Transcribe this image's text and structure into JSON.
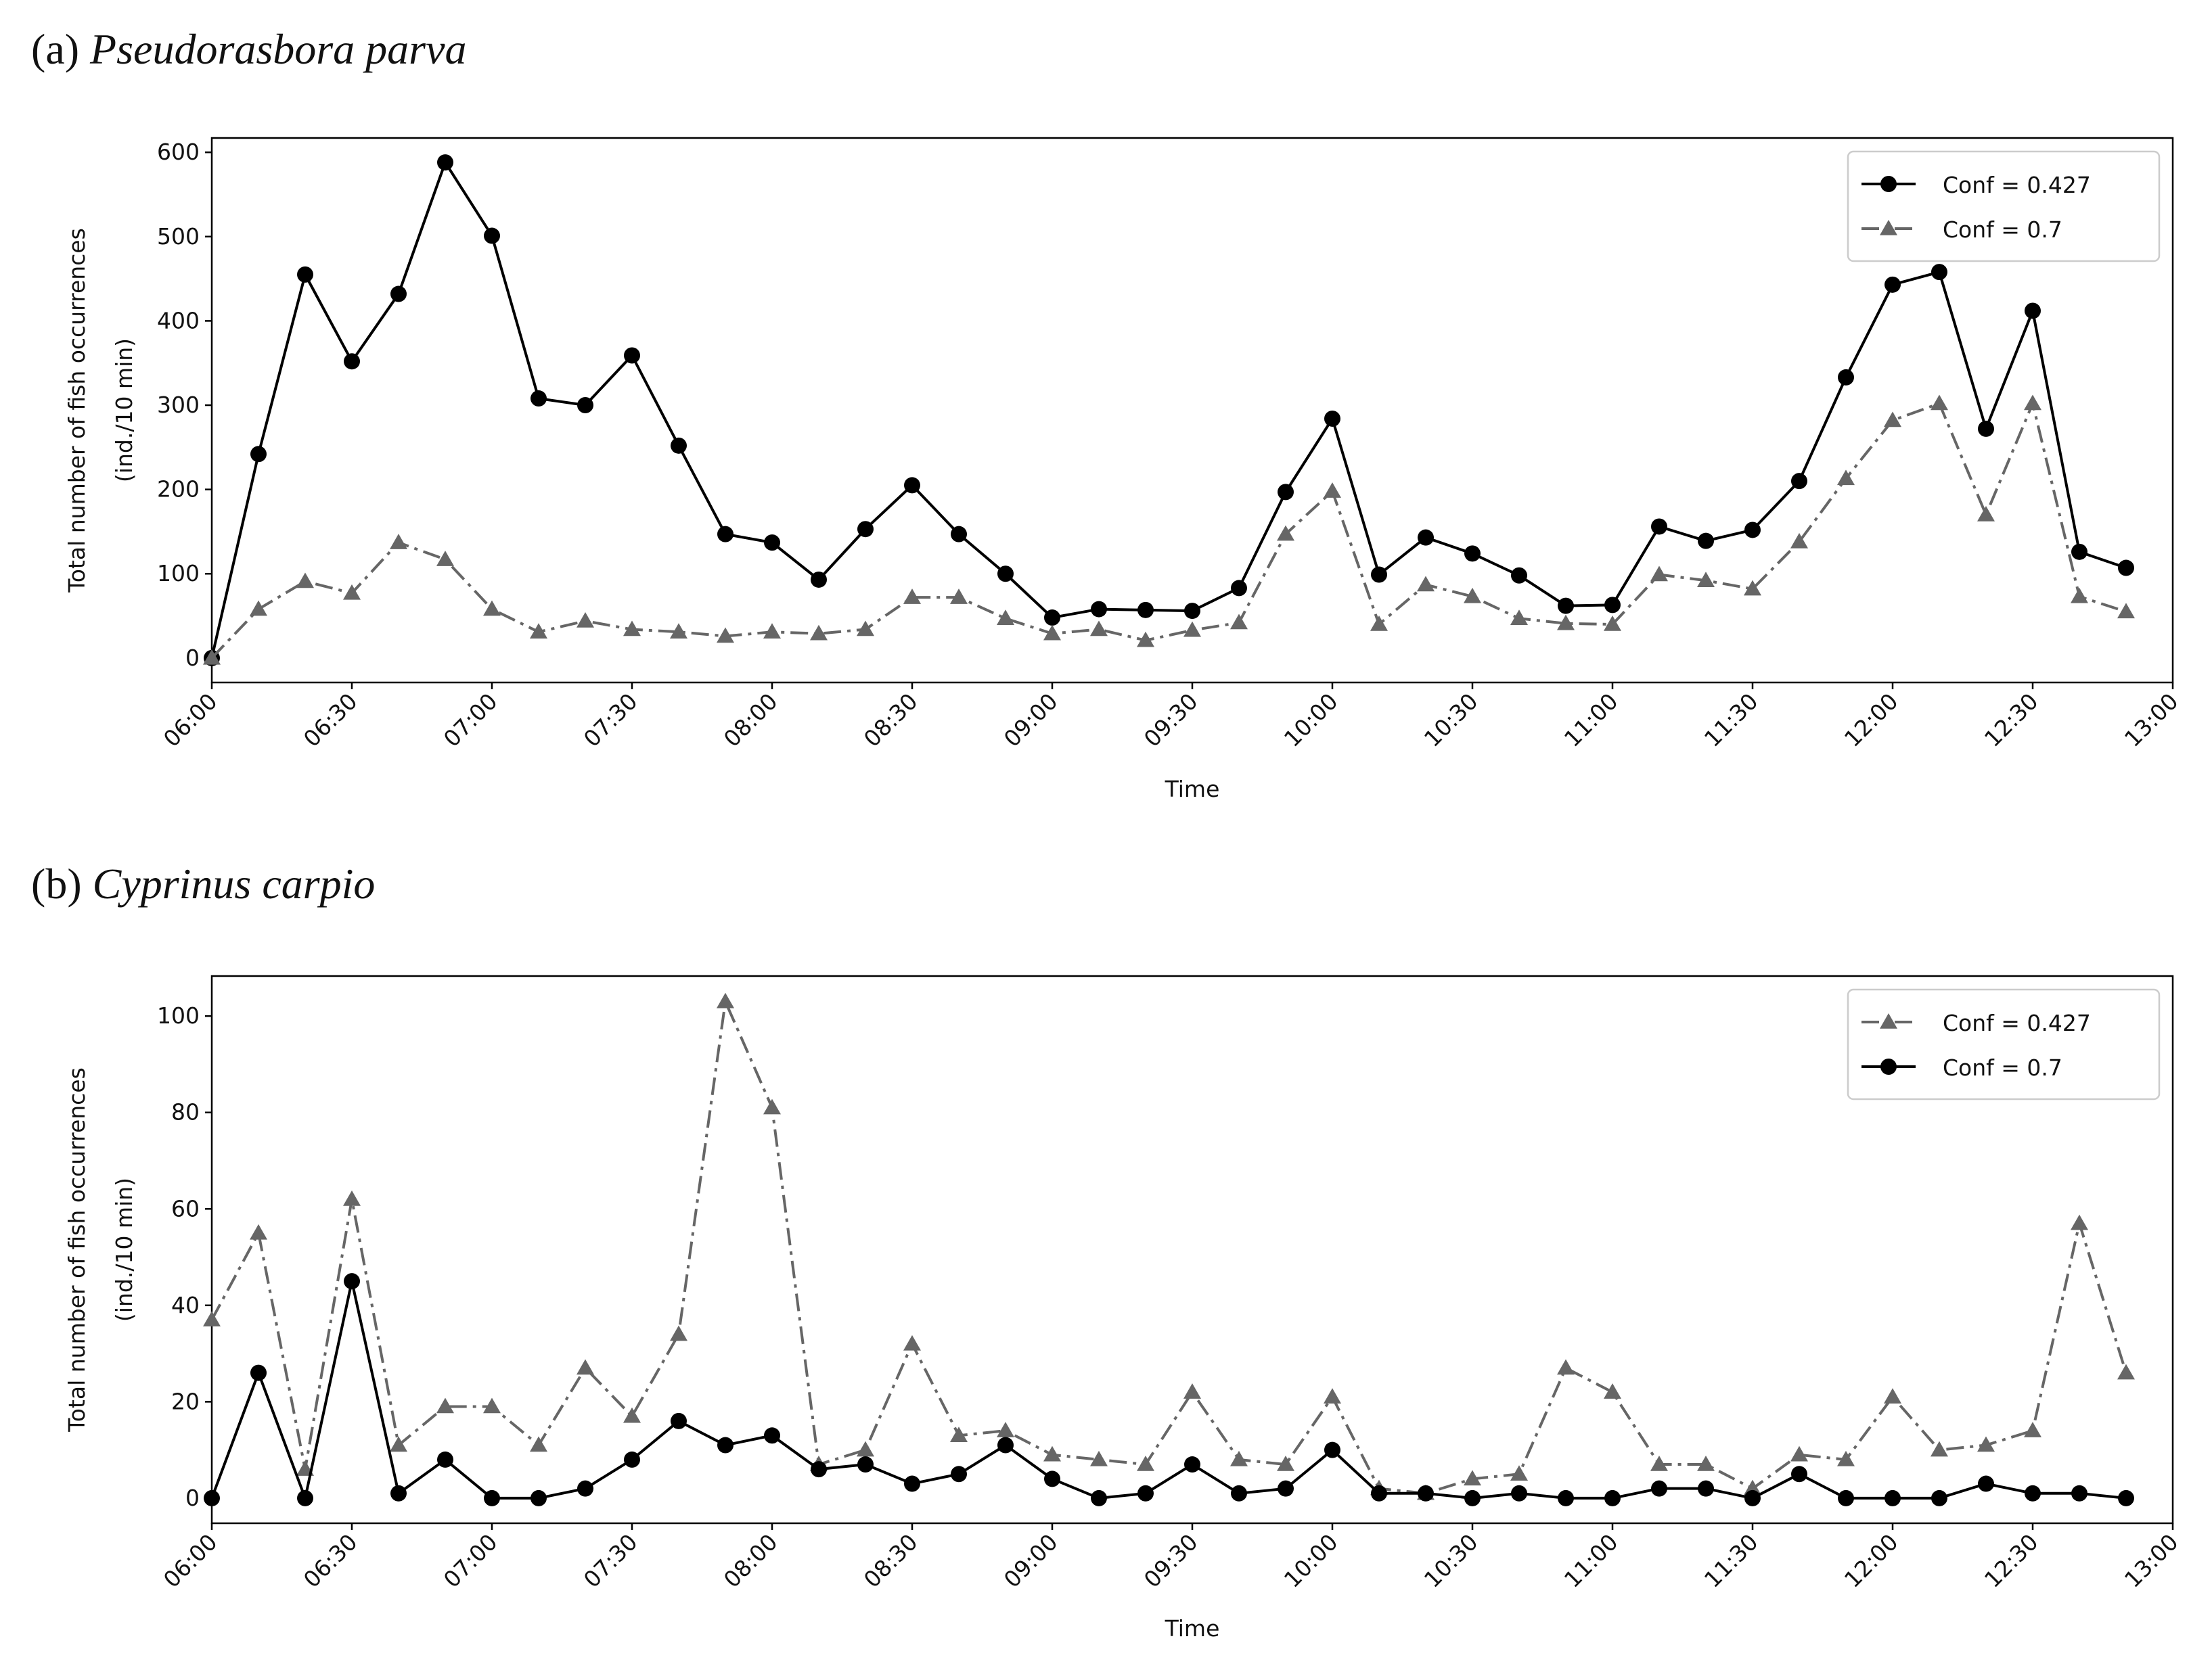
{
  "chart_data": [
    {
      "type": "line",
      "label": "(a)",
      "title": "Pseudorasbora parva",
      "x_label": "Time",
      "y_label": [
        "Total number of fish occurrences",
        "(ind./10 min)"
      ],
      "x": [
        "06:00",
        "06:10",
        "06:20",
        "06:30",
        "06:40",
        "06:50",
        "07:00",
        "07:10",
        "07:20",
        "07:30",
        "07:40",
        "07:50",
        "08:00",
        "08:10",
        "08:20",
        "08:30",
        "08:40",
        "08:50",
        "09:00",
        "09:10",
        "09:20",
        "09:30",
        "09:40",
        "09:50",
        "10:00",
        "10:10",
        "10:20",
        "10:30",
        "10:40",
        "10:50",
        "11:00",
        "11:10",
        "11:20",
        "11:30",
        "11:40",
        "11:50",
        "12:00",
        "12:10",
        "12:20",
        "12:30",
        "12:40",
        "12:50"
      ],
      "series": [
        {
          "name": "Conf = 0.427",
          "color": "#000000",
          "marker": "circle",
          "linestyle": "solid",
          "values": [
            0,
            242,
            455,
            352,
            432,
            588,
            501,
            308,
            300,
            359,
            252,
            147,
            137,
            93,
            153,
            205,
            147,
            100,
            48,
            58,
            57,
            56,
            83,
            197,
            284,
            99,
            143,
            124,
            98,
            62,
            63,
            156,
            139,
            152,
            210,
            333,
            443,
            458,
            272,
            412,
            126,
            107
          ]
        },
        {
          "name": "Conf = 0.7",
          "color": "#666666",
          "marker": "triangle",
          "linestyle": "dashdot",
          "values": [
            0,
            58,
            91,
            77,
            137,
            117,
            58,
            31,
            44,
            34,
            31,
            26,
            31,
            29,
            34,
            72,
            72,
            47,
            29,
            34,
            21,
            33,
            42,
            147,
            198,
            40,
            87,
            73,
            47,
            41,
            40,
            99,
            92,
            82,
            138,
            213,
            282,
            302,
            170,
            302,
            73,
            55
          ]
        }
      ],
      "xlim": [
        "06:00",
        "13:00"
      ],
      "xticks": [
        "06:00",
        "06:30",
        "07:00",
        "07:30",
        "08:00",
        "08:30",
        "09:00",
        "09:30",
        "10:00",
        "10:30",
        "11:00",
        "11:30",
        "12:00",
        "12:30",
        "13:00"
      ],
      "ylim": [
        -29,
        617
      ],
      "yticks": [
        0,
        100,
        200,
        300,
        400,
        500,
        600
      ],
      "legend": "upper right"
    },
    {
      "type": "line",
      "label": "(b)",
      "title": "Cyprinus carpio",
      "x_label": "Time",
      "y_label": [
        "Total number of fish occurrences",
        "(ind./10 min)"
      ],
      "x": [
        "06:00",
        "06:10",
        "06:20",
        "06:30",
        "06:40",
        "06:50",
        "07:00",
        "07:10",
        "07:20",
        "07:30",
        "07:40",
        "07:50",
        "08:00",
        "08:10",
        "08:20",
        "08:30",
        "08:40",
        "08:50",
        "09:00",
        "09:10",
        "09:20",
        "09:30",
        "09:40",
        "09:50",
        "10:00",
        "10:10",
        "10:20",
        "10:30",
        "10:40",
        "10:50",
        "11:00",
        "11:10",
        "11:20",
        "11:30",
        "11:40",
        "11:50",
        "12:00",
        "12:10",
        "12:20",
        "12:30",
        "12:40",
        "12:50"
      ],
      "series": [
        {
          "name": "Conf = 0.427",
          "color": "#666666",
          "marker": "triangle",
          "linestyle": "dashdot",
          "values": [
            37,
            55,
            6,
            62,
            11,
            19,
            19,
            11,
            27,
            17,
            34,
            103,
            81,
            7,
            10,
            32,
            13,
            14,
            9,
            8,
            7,
            22,
            8,
            7,
            21,
            2,
            1,
            4,
            5,
            27,
            22,
            7,
            7,
            2,
            9,
            8,
            21,
            10,
            11,
            14,
            57,
            26
          ]
        },
        {
          "name": "Conf = 0.7",
          "color": "#000000",
          "marker": "circle",
          "linestyle": "solid",
          "values": [
            0,
            26,
            0,
            45,
            1,
            8,
            0,
            0,
            2,
            8,
            16,
            11,
            13,
            6,
            7,
            3,
            5,
            11,
            4,
            0,
            1,
            7,
            1,
            2,
            10,
            1,
            1,
            0,
            1,
            0,
            0,
            2,
            2,
            0,
            5,
            0,
            0,
            0,
            3,
            1,
            1,
            0
          ]
        }
      ],
      "xlim": [
        "06:00",
        "13:00"
      ],
      "xticks": [
        "06:00",
        "06:30",
        "07:00",
        "07:30",
        "08:00",
        "08:30",
        "09:00",
        "09:30",
        "10:00",
        "10:30",
        "11:00",
        "11:30",
        "12:00",
        "12:30",
        "13:00"
      ],
      "ylim": [
        -5.2,
        108.3
      ],
      "yticks": [
        0,
        20,
        40,
        60,
        80,
        100
      ],
      "legend": "upper right"
    }
  ]
}
